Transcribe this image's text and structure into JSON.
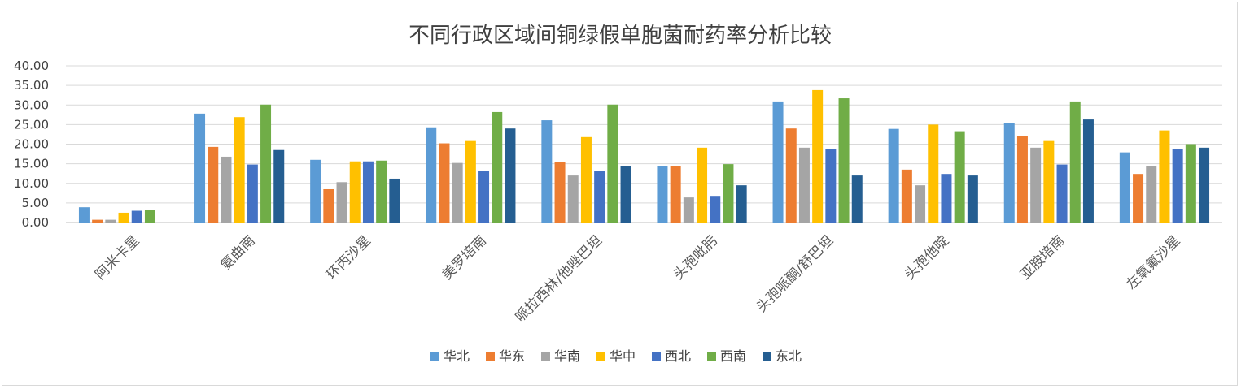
{
  "chart_data": {
    "type": "bar",
    "title": "不同行政区域间铜绿假单胞菌耐药率分析比较",
    "xlabel": "",
    "ylabel": "",
    "ylim": [
      0,
      40
    ],
    "yticks": [
      "0.00",
      "5.00",
      "10.00",
      "15.00",
      "20.00",
      "25.00",
      "30.00",
      "35.00",
      "40.00"
    ],
    "grid": true,
    "legend_position": "bottom",
    "categories": [
      "阿米卡星",
      "氨曲南",
      "环丙沙星",
      "美罗培南",
      "哌拉西林/他唑巴坦",
      "头孢吡肟",
      "头孢哌酮/舒巴坦",
      "头孢他啶",
      "亚胺培南",
      "左氧氟沙星"
    ],
    "series": [
      {
        "name": "华北",
        "color": "#5b9bd5",
        "values": [
          3.9,
          27.8,
          16.0,
          24.3,
          26.1,
          14.4,
          30.9,
          23.9,
          25.3,
          17.9
        ]
      },
      {
        "name": "华东",
        "color": "#ed7d31",
        "values": [
          0.7,
          19.3,
          8.5,
          20.2,
          15.4,
          14.4,
          24.0,
          13.5,
          22.0,
          12.4
        ]
      },
      {
        "name": "华南",
        "color": "#a5a5a5",
        "values": [
          0.7,
          16.8,
          10.3,
          15.2,
          12.0,
          6.4,
          19.1,
          9.5,
          19.1,
          14.3
        ]
      },
      {
        "name": "华中",
        "color": "#ffc000",
        "values": [
          2.5,
          26.9,
          15.6,
          20.8,
          21.8,
          19.1,
          33.8,
          25.0,
          20.8,
          23.5
        ]
      },
      {
        "name": "西北",
        "color": "#4472c4",
        "values": [
          3.0,
          14.8,
          15.6,
          13.1,
          13.1,
          6.8,
          18.8,
          12.4,
          14.8,
          18.8
        ]
      },
      {
        "name": "西南",
        "color": "#70ad47",
        "values": [
          3.3,
          30.1,
          15.8,
          28.2,
          30.1,
          14.9,
          31.7,
          23.3,
          30.9,
          20.0
        ]
      },
      {
        "name": "东北",
        "color": "#255e91",
        "values": [
          null,
          18.5,
          11.2,
          24.0,
          14.3,
          9.5,
          12.0,
          12.0,
          26.3,
          19.1
        ]
      }
    ]
  }
}
